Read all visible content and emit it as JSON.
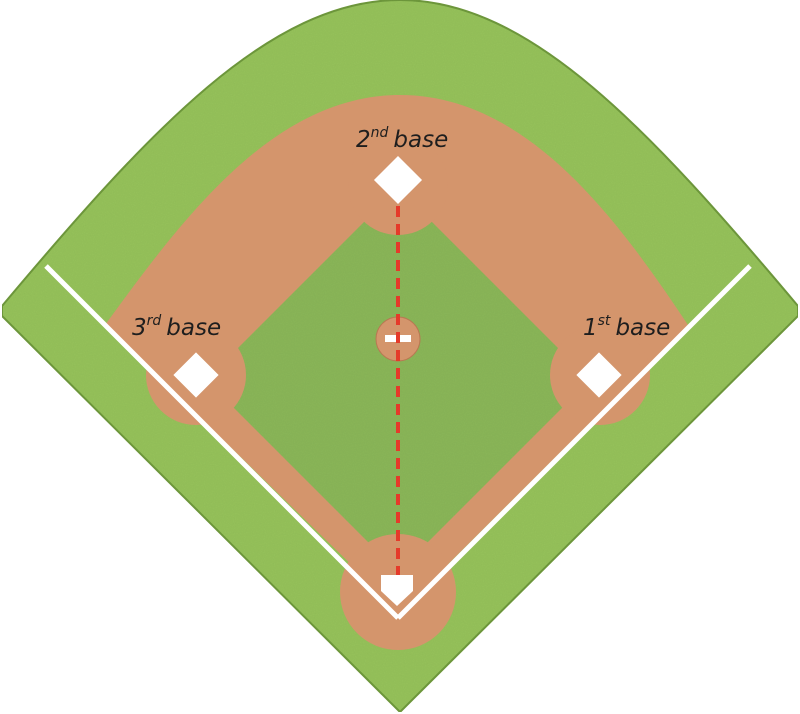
{
  "labels": {
    "second": {
      "num": "2",
      "sup": "nd",
      "word": "base"
    },
    "third": {
      "num": "3",
      "sup": "rd",
      "word": "base"
    },
    "first": {
      "num": "1",
      "sup": "st",
      "word": "base"
    }
  },
  "colors": {
    "grass": "#96c35c",
    "grass_edge": "#6f9a3c",
    "infield_grass": "#8bb75a",
    "dirt": "#d4956c",
    "dirt_edge": "#b87852",
    "base": "#ffffff",
    "chalk": "#ffffff",
    "dashed_line": "#e53a2a"
  }
}
